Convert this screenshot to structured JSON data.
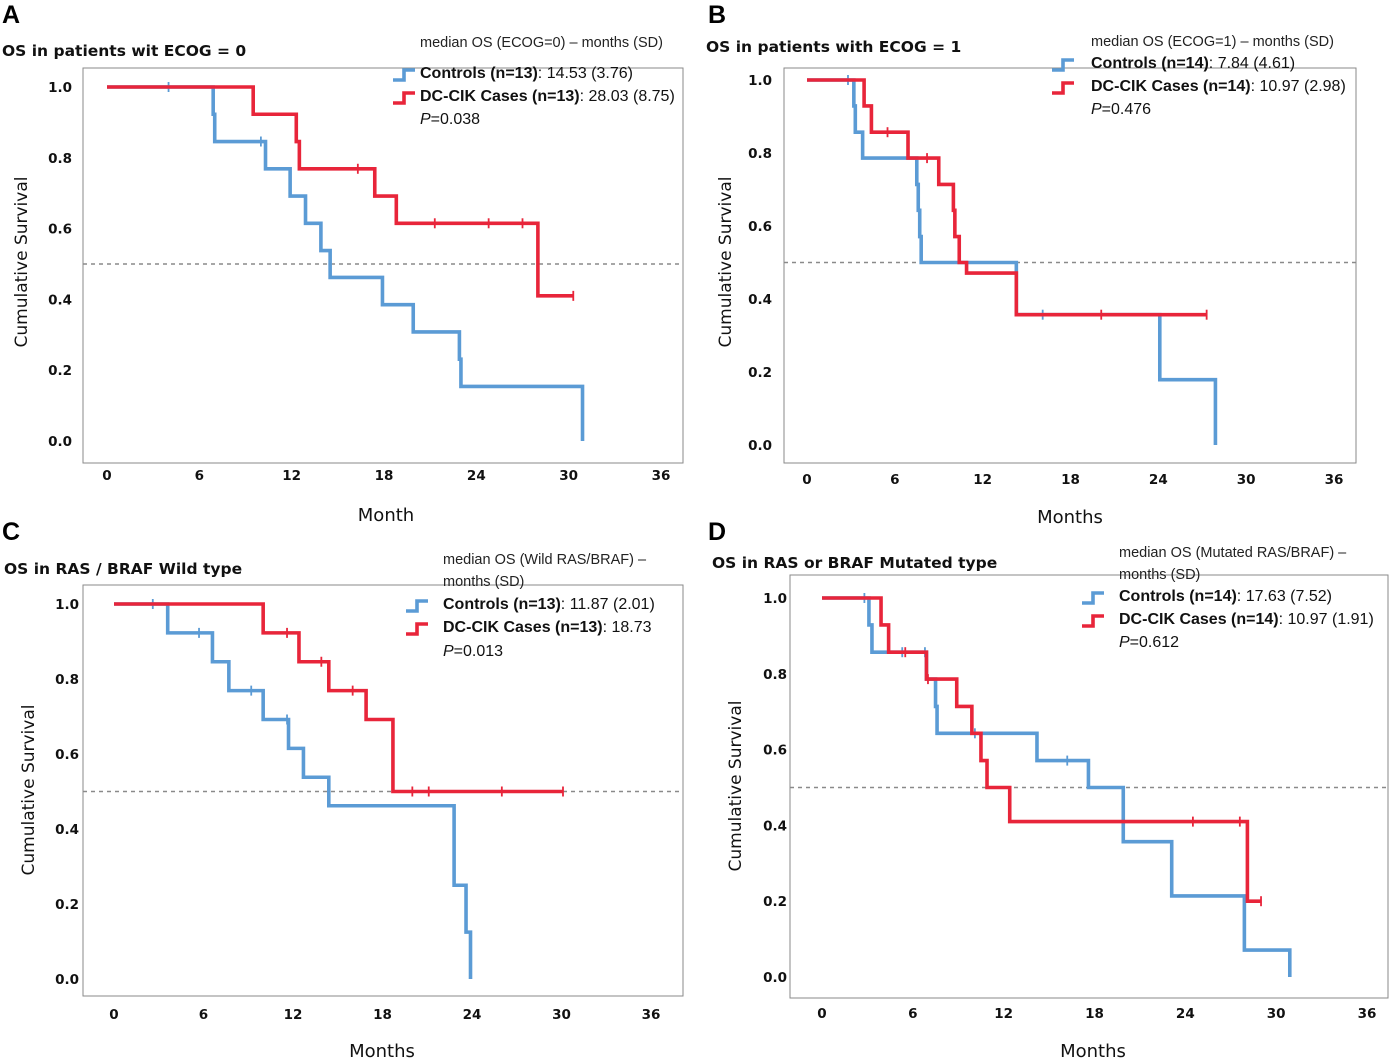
{
  "colors": {
    "controls": "#5b9bd5",
    "cases": "#e8253a"
  },
  "chart_data": [
    {
      "type": "line",
      "panel": "A",
      "title": "OS in patients wit ECOG = 0",
      "xlabel": "Month",
      "ylabel": "Cumulative Survival",
      "xlim": [
        0,
        36
      ],
      "ylim": [
        0,
        1
      ],
      "xticks": [
        "0",
        "6",
        "12",
        "18",
        "24",
        "30",
        "36"
      ],
      "yticks": [
        "0.0",
        "0.2",
        "0.4",
        "0.6",
        "0.8",
        "1.0"
      ],
      "reference_line": 0.5,
      "legend": {
        "header": "median OS (ECOG=0) – months (SD)",
        "entries": [
          {
            "series": "controls",
            "name": "Controls (n=13)",
            "value": ": 14.53 (3.76)"
          },
          {
            "series": "cases",
            "name": "DC-CIK Cases (n=13)",
            "value": ": 28.03 (8.75)"
          }
        ],
        "p_value": "=0.038"
      },
      "series": [
        {
          "name": "Controls",
          "color_key": "controls",
          "steps": [
            [
              0,
              1.0
            ],
            [
              6.9,
              0.923
            ],
            [
              7.0,
              0.846
            ],
            [
              10.3,
              0.769
            ],
            [
              11.9,
              0.692
            ],
            [
              12.9,
              0.615
            ],
            [
              13.9,
              0.538
            ],
            [
              14.5,
              0.462
            ],
            [
              17.9,
              0.385
            ],
            [
              19.9,
              0.308
            ],
            [
              22.9,
              0.231
            ],
            [
              23.0,
              0.154
            ],
            [
              30.9,
              0.0
            ]
          ],
          "end": 30.9,
          "censor": [
            4.0,
            10.0
          ]
        },
        {
          "name": "DC-CIK Cases",
          "color_key": "cases",
          "steps": [
            [
              0,
              1.0
            ],
            [
              9.5,
              0.923
            ],
            [
              12.3,
              0.846
            ],
            [
              12.5,
              0.769
            ],
            [
              17.4,
              0.692
            ],
            [
              18.8,
              0.615
            ],
            [
              28.0,
              0.41
            ]
          ],
          "end": 30.3,
          "censor": [
            16.3,
            21.3,
            24.8,
            27.0,
            30.3
          ]
        }
      ]
    },
    {
      "type": "line",
      "panel": "B",
      "title": "OS in patients with ECOG = 1",
      "xlabel": "Months",
      "ylabel": "Cumulative Survival",
      "xlim": [
        0,
        36
      ],
      "ylim": [
        0,
        1
      ],
      "xticks": [
        "0",
        "6",
        "12",
        "18",
        "24",
        "30",
        "36"
      ],
      "yticks": [
        "0.0",
        "0.2",
        "0.4",
        "0.6",
        "0.8",
        "1.0"
      ],
      "reference_line": 0.5,
      "legend": {
        "header": "median OS (ECOG=1) – months (SD)",
        "entries": [
          {
            "series": "controls",
            "name": "Controls (n=14)",
            "value": ": 7.84 (4.61)"
          },
          {
            "series": "cases",
            "name": "DC-CIK Cases (n=14)",
            "value": ": 10.97 (2.98)"
          }
        ],
        "p_value": "=0.476"
      },
      "series": [
        {
          "name": "Controls",
          "color_key": "controls",
          "steps": [
            [
              0,
              1.0
            ],
            [
              3.2,
              0.929
            ],
            [
              3.3,
              0.857
            ],
            [
              3.8,
              0.786
            ],
            [
              7.5,
              0.714
            ],
            [
              7.6,
              0.643
            ],
            [
              7.7,
              0.571
            ],
            [
              7.8,
              0.5
            ],
            [
              14.3,
              0.357
            ],
            [
              24.1,
              0.179
            ],
            [
              27.9,
              0.0
            ]
          ],
          "end": 27.9,
          "censor": [
            2.8,
            16.1
          ]
        },
        {
          "name": "DC-CIK Cases",
          "color_key": "cases",
          "steps": [
            [
              0,
              1.0
            ],
            [
              3.9,
              0.929
            ],
            [
              4.4,
              0.857
            ],
            [
              6.9,
              0.786
            ],
            [
              9.0,
              0.714
            ],
            [
              10.0,
              0.643
            ],
            [
              10.1,
              0.571
            ],
            [
              10.4,
              0.5
            ],
            [
              10.9,
              0.471
            ],
            [
              14.3,
              0.357
            ]
          ],
          "end": 27.3,
          "censor": [
            5.5,
            8.2,
            20.1,
            27.3
          ]
        }
      ]
    },
    {
      "type": "line",
      "panel": "C",
      "title": "OS in RAS / BRAF Wild type",
      "xlabel": "Months",
      "ylabel": "Cumulative Survival",
      "xlim": [
        0,
        36
      ],
      "ylim": [
        0,
        1
      ],
      "xticks": [
        "0",
        "6",
        "12",
        "18",
        "24",
        "30",
        "36"
      ],
      "yticks": [
        "0.0",
        "0.2",
        "0.4",
        "0.6",
        "0.8",
        "1.0"
      ],
      "reference_line": 0.5,
      "legend": {
        "header_lines": [
          "median OS (Wild RAS/BRAF) –",
          "months (SD)"
        ],
        "entries": [
          {
            "series": "controls",
            "name": "Controls (n=13)",
            "value": ": 11.87 (2.01)"
          },
          {
            "series": "cases",
            "name": "DC-CIK Cases (n=13)",
            "value": ": 18.73"
          }
        ],
        "p_value": "=0.013"
      },
      "series": [
        {
          "name": "Controls",
          "color_key": "controls",
          "steps": [
            [
              0,
              1.0
            ],
            [
              3.6,
              0.923
            ],
            [
              6.6,
              0.846
            ],
            [
              7.7,
              0.769
            ],
            [
              10.0,
              0.692
            ],
            [
              11.7,
              0.615
            ],
            [
              12.7,
              0.538
            ],
            [
              14.4,
              0.462
            ],
            [
              22.8,
              0.25
            ],
            [
              23.6,
              0.125
            ],
            [
              23.9,
              0.0
            ]
          ],
          "end": 23.9,
          "censor": [
            2.6,
            5.7,
            9.2,
            11.6
          ]
        },
        {
          "name": "DC-CIK Cases",
          "color_key": "cases",
          "steps": [
            [
              0,
              1.0
            ],
            [
              10.0,
              0.923
            ],
            [
              12.4,
              0.846
            ],
            [
              14.4,
              0.769
            ],
            [
              16.9,
              0.692
            ],
            [
              18.7,
              0.5
            ]
          ],
          "end": 30.1,
          "censor": [
            11.6,
            13.9,
            16.0,
            20.0,
            21.1,
            26.0,
            30.1
          ]
        }
      ]
    },
    {
      "type": "line",
      "panel": "D",
      "title": "OS in RAS or BRAF Mutated type",
      "xlabel": "Months",
      "ylabel": "Cumulative Survival",
      "xlim": [
        0,
        36
      ],
      "ylim": [
        0,
        1
      ],
      "xticks": [
        "0",
        "6",
        "12",
        "18",
        "24",
        "30",
        "36"
      ],
      "yticks": [
        "0.0",
        "0.2",
        "0.4",
        "0.6",
        "0.8",
        "1.0"
      ],
      "reference_line": 0.5,
      "legend": {
        "header_lines": [
          "median OS (Mutated RAS/BRAF) –",
          "months (SD)"
        ],
        "entries": [
          {
            "series": "controls",
            "name": "Controls (n=14)",
            "value": ": 17.63 (7.52)"
          },
          {
            "series": "cases",
            "name": "DC-CIK Cases (n=14)",
            "value": ": 10.97 (1.91)"
          }
        ],
        "p_value": "=0.612"
      },
      "series": [
        {
          "name": "Controls",
          "color_key": "controls",
          "steps": [
            [
              0,
              1.0
            ],
            [
              3.1,
              0.929
            ],
            [
              3.3,
              0.857
            ],
            [
              6.9,
              0.786
            ],
            [
              7.5,
              0.714
            ],
            [
              7.6,
              0.643
            ],
            [
              14.2,
              0.571
            ],
            [
              17.6,
              0.5
            ],
            [
              19.9,
              0.357
            ],
            [
              23.1,
              0.214
            ],
            [
              27.9,
              0.071
            ],
            [
              30.9,
              0.0
            ]
          ],
          "end": 30.9,
          "censor": [
            2.8,
            5.3,
            6.8,
            10.1,
            16.2
          ]
        },
        {
          "name": "DC-CIK Cases",
          "color_key": "cases",
          "steps": [
            [
              0,
              1.0
            ],
            [
              3.9,
              0.929
            ],
            [
              4.4,
              0.857
            ],
            [
              6.9,
              0.786
            ],
            [
              8.9,
              0.714
            ],
            [
              9.9,
              0.643
            ],
            [
              10.5,
              0.571
            ],
            [
              10.9,
              0.5
            ],
            [
              12.4,
              0.41
            ],
            [
              28.1,
              0.2
            ]
          ],
          "end": 29.0,
          "censor": [
            5.5,
            7.0,
            24.5,
            27.6,
            29.0
          ]
        }
      ]
    }
  ]
}
